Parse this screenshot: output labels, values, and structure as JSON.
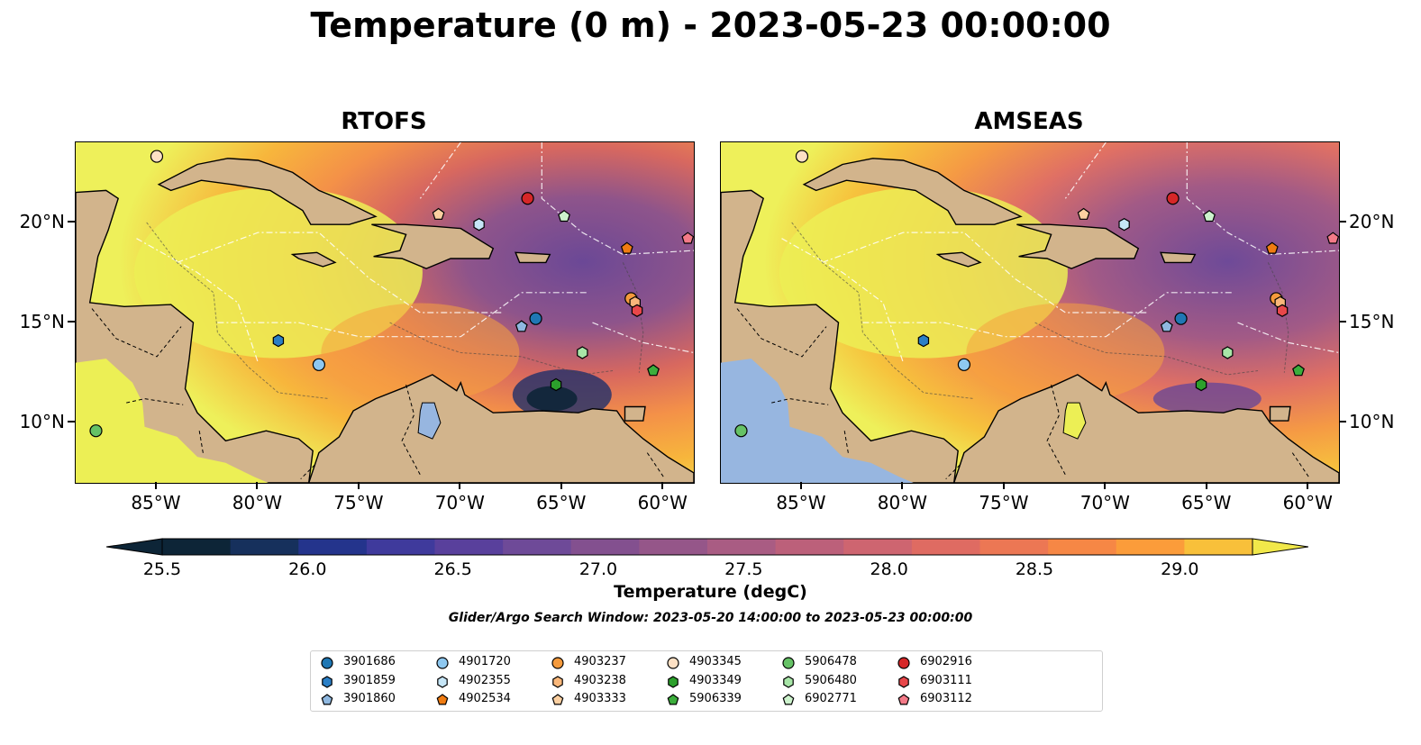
{
  "title": "Temperature (0 m) - 2023-05-23 00:00:00",
  "panels": [
    {
      "title": "RTOFS"
    },
    {
      "title": "AMSEAS"
    }
  ],
  "axes": {
    "lon_ticks": [
      "85°W",
      "80°W",
      "75°W",
      "70°W",
      "65°W",
      "60°W"
    ],
    "lat_ticks": [
      "20°N",
      "15°N",
      "10°N"
    ],
    "lon_range": [
      -89,
      -58.5
    ],
    "lat_range": [
      7,
      24
    ]
  },
  "colorbar": {
    "label": "Temperature (degC)",
    "ticks": [
      "25.5",
      "26.0",
      "26.5",
      "27.0",
      "27.5",
      "28.0",
      "28.5",
      "29.0"
    ],
    "range": [
      25.5,
      29.25
    ],
    "colors": [
      "#0d2537",
      "#16305c",
      "#24348c",
      "#3f3a9c",
      "#59409c",
      "#6e4a98",
      "#83508f",
      "#955689",
      "#a95c83",
      "#bc607a",
      "#ce6570",
      "#df6b62",
      "#ec7754",
      "#f68745",
      "#fb9c3a",
      "#f8c03a",
      "#f1e84a"
    ]
  },
  "search_window": "Glider/Argo Search Window: 2023-05-20 14:00:00 to 2023-05-23 00:00:00",
  "legend": [
    {
      "id": "3901686",
      "color": "#1f77b4",
      "marker": "circle"
    },
    {
      "id": "3901859",
      "color": "#2b7fc6",
      "marker": "hexagon"
    },
    {
      "id": "3901860",
      "color": "#8fb8e0",
      "marker": "pentagon"
    },
    {
      "id": "4901720",
      "color": "#8ec8f0",
      "marker": "circle"
    },
    {
      "id": "4902355",
      "color": "#c6e6f7",
      "marker": "hexagon"
    },
    {
      "id": "4902534",
      "color": "#f07c12",
      "marker": "pentagon"
    },
    {
      "id": "4903237",
      "color": "#f59a3c",
      "marker": "circle"
    },
    {
      "id": "4903238",
      "color": "#f9b77a",
      "marker": "hexagon"
    },
    {
      "id": "4903333",
      "color": "#fcd0a1",
      "marker": "pentagon"
    },
    {
      "id": "4903345",
      "color": "#fde0c4",
      "marker": "circle"
    },
    {
      "id": "4903349",
      "color": "#2ca02c",
      "marker": "hexagon"
    },
    {
      "id": "5906339",
      "color": "#3cae3c",
      "marker": "pentagon"
    },
    {
      "id": "5906478",
      "color": "#66c266",
      "marker": "circle"
    },
    {
      "id": "5906480",
      "color": "#a8e6a8",
      "marker": "hexagon"
    },
    {
      "id": "6902771",
      "color": "#cdf3cd",
      "marker": "pentagon"
    },
    {
      "id": "6902916",
      "color": "#d62728",
      "marker": "circle"
    },
    {
      "id": "6903111",
      "color": "#e8474a",
      "marker": "hexagon"
    },
    {
      "id": "6903112",
      "color": "#f47a88",
      "marker": "pentagon"
    }
  ],
  "floats": [
    {
      "id": "3901686",
      "lon": -66.3,
      "lat": 15.2
    },
    {
      "id": "3901859",
      "lon": -79.0,
      "lat": 14.1
    },
    {
      "id": "3901860",
      "lon": -67.0,
      "lat": 14.8
    },
    {
      "id": "4901720",
      "lon": -77.0,
      "lat": 12.9
    },
    {
      "id": "4902355",
      "lon": -69.1,
      "lat": 19.9
    },
    {
      "id": "4902534",
      "lon": -61.8,
      "lat": 18.7
    },
    {
      "id": "4903237",
      "lon": -61.6,
      "lat": 16.2
    },
    {
      "id": "4903238",
      "lon": -61.4,
      "lat": 16.0
    },
    {
      "id": "4903333",
      "lon": -71.1,
      "lat": 20.4
    },
    {
      "id": "4903345",
      "lon": -85.0,
      "lat": 23.3
    },
    {
      "id": "4903349",
      "lon": -65.3,
      "lat": 11.9
    },
    {
      "id": "5906339",
      "lon": -60.5,
      "lat": 12.6
    },
    {
      "id": "5906478",
      "lon": -88.0,
      "lat": 9.6
    },
    {
      "id": "5906480",
      "lon": -64.0,
      "lat": 13.5
    },
    {
      "id": "6902771",
      "lon": -64.9,
      "lat": 20.3
    },
    {
      "id": "6902916",
      "lon": -66.7,
      "lat": 21.2
    },
    {
      "id": "6903111",
      "lon": -61.3,
      "lat": 15.6
    },
    {
      "id": "6903112",
      "lon": -58.8,
      "lat": 19.2
    }
  ]
}
